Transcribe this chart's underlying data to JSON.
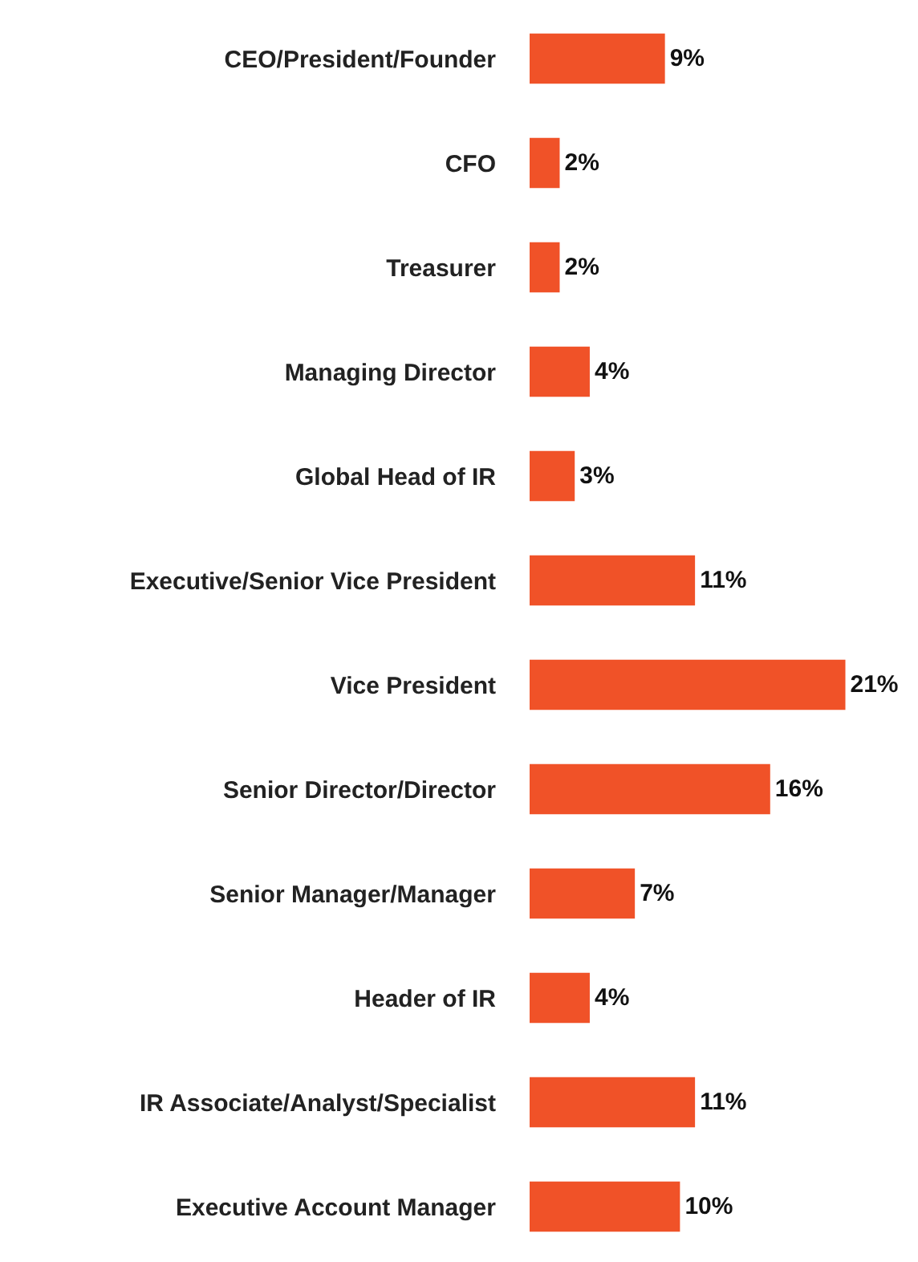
{
  "chart_data": {
    "type": "bar",
    "orientation": "horizontal",
    "tick_labels": "y",
    "categories": [
      "CEO/President/Founder",
      "CFO",
      "Treasurer",
      "Managing Director",
      "Global Head of IR",
      "Executive/Senior Vice President",
      "Vice President",
      "Senior Director/Director",
      "Senior Manager/Manager",
      "Header of IR",
      "IR Associate/Analyst/Specialist",
      "Executive Account Manager"
    ],
    "values": [
      9,
      2,
      2,
      4,
      3,
      11,
      21,
      16,
      7,
      4,
      11,
      10
    ],
    "value_labels": [
      "9%",
      "2%",
      "2%",
      "4%",
      "3%",
      "11%",
      "21%",
      "16%",
      "7%",
      "4%",
      "11%",
      "10%"
    ],
    "color": "#f05228"
  }
}
